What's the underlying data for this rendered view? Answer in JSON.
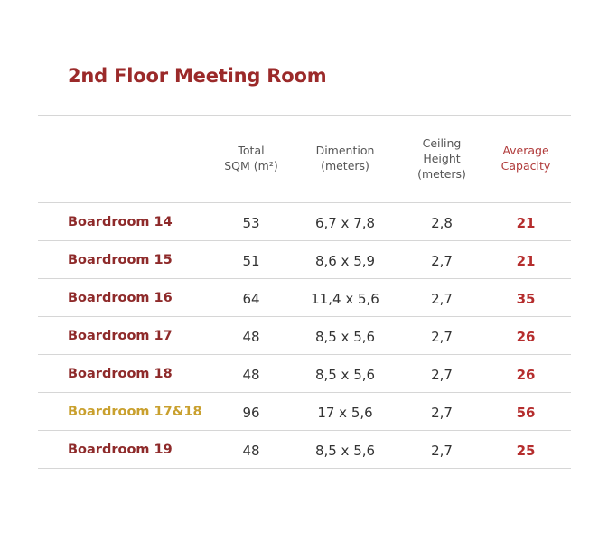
{
  "title": "2nd Floor Meeting Room",
  "columns": [
    {
      "label": "Total\nSQM (m²)"
    },
    {
      "label": "Dimention\n(meters)"
    },
    {
      "label": "Ceiling\nHeight\n(meters)"
    },
    {
      "label": "Average\nCapacity"
    }
  ],
  "rows": [
    {
      "name": "Boardroom 14",
      "sqm": "53",
      "dimension": "6,7 x 7,8",
      "ceiling": "2,8",
      "capacity": "21"
    },
    {
      "name": "Boardroom 15",
      "sqm": "51",
      "dimension": "8,6 x 5,9",
      "ceiling": "2,7",
      "capacity": "21"
    },
    {
      "name": "Boardroom 16",
      "sqm": "64",
      "dimension": "11,4 x 5,6",
      "ceiling": "2,7",
      "capacity": "35"
    },
    {
      "name": "Boardroom 17",
      "sqm": "48",
      "dimension": "8,5 x 5,6",
      "ceiling": "2,7",
      "capacity": "26"
    },
    {
      "name": "Boardroom 18",
      "sqm": "48",
      "dimension": "8,5 x 5,6",
      "ceiling": "2,7",
      "capacity": "26"
    },
    {
      "name": "Boardroom 17&18",
      "sqm": "96",
      "dimension": "17 x 5,6",
      "ceiling": "2,7",
      "capacity": "56"
    },
    {
      "name": "Boardroom 19",
      "sqm": "48",
      "dimension": "8,5 x 5,6",
      "ceiling": "2,7",
      "capacity": "25"
    }
  ],
  "colors": {
    "title": "#9b2a2a",
    "room_name": "#8e2a2a",
    "combined_room_name": "#c9a02e",
    "capacity": "#b52d2d",
    "rule": "#d6d6d6"
  }
}
